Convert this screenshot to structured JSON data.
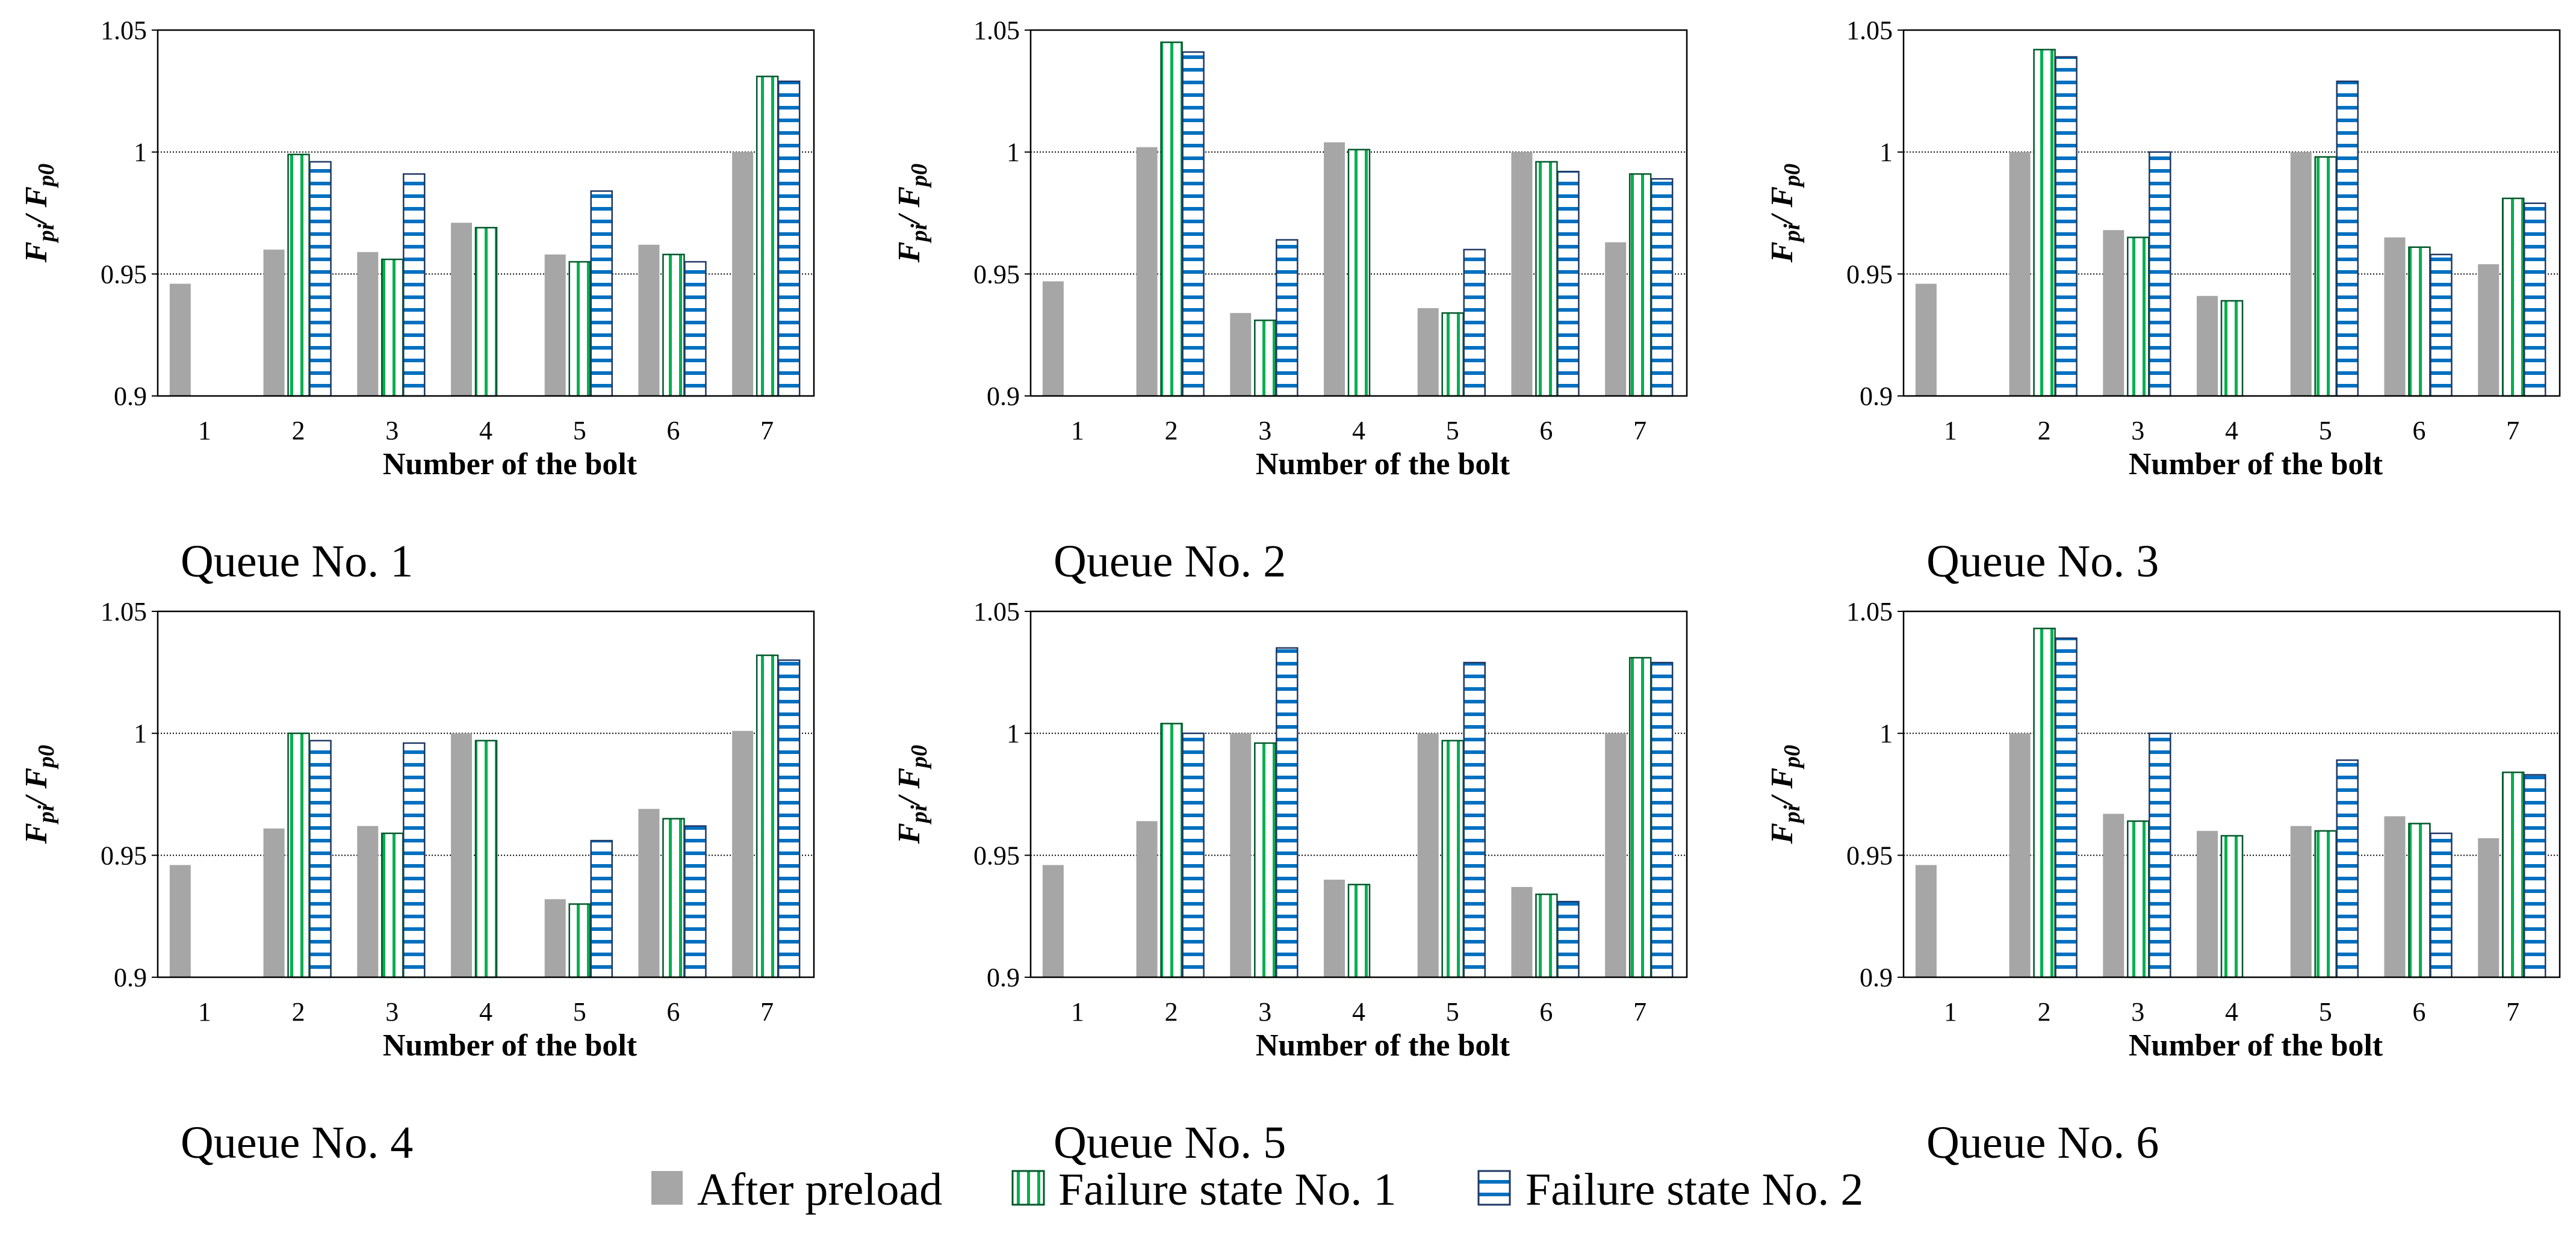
{
  "colors": {
    "after_preload": "#a6a6a6",
    "failure_1_stripe": "#00b050",
    "failure_1_edge": "#00572a",
    "failure_2_stripe": "#0070c0",
    "failure_2_edge": "#1f3864",
    "gridline": "#000000"
  },
  "chart_data": [
    {
      "type": "bar",
      "title": "Queue No. 1",
      "xlabel": "Number of the bolt",
      "ylabel": {
        "main": "F",
        "sub1": "pi",
        "sep": "/ F",
        "sub2": "p0"
      },
      "ylim": [
        0.9,
        1.05
      ],
      "yticks": [
        "0.9",
        "0.95",
        "1",
        "1.05"
      ],
      "ytick_values": [
        0.9,
        0.95,
        1.0,
        1.05
      ],
      "gridlines": [
        0.95,
        1.0
      ],
      "categories": [
        "1",
        "2",
        "3",
        "4",
        "5",
        "6",
        "7"
      ],
      "series": [
        {
          "name": "After preload",
          "values": [
            0.946,
            0.96,
            0.959,
            0.971,
            0.958,
            0.962,
            1.0
          ]
        },
        {
          "name": "Failure state No. 1",
          "values": [
            null,
            0.999,
            0.956,
            0.969,
            0.955,
            0.958,
            1.031
          ]
        },
        {
          "name": "Failure state No. 2",
          "values": [
            null,
            0.996,
            0.991,
            null,
            0.984,
            0.955,
            1.029
          ]
        }
      ]
    },
    {
      "type": "bar",
      "title": "Queue No. 2",
      "xlabel": "Number of the bolt",
      "ylabel": {
        "main": "F",
        "sub1": "pi",
        "sep": "/ F",
        "sub2": "p0"
      },
      "ylim": [
        0.9,
        1.05
      ],
      "yticks": [
        "0.9",
        "0.95",
        "1",
        "1.05"
      ],
      "ytick_values": [
        0.9,
        0.95,
        1.0,
        1.05
      ],
      "gridlines": [
        0.95,
        1.0
      ],
      "categories": [
        "1",
        "2",
        "3",
        "4",
        "5",
        "6",
        "7"
      ],
      "series": [
        {
          "name": "After preload",
          "values": [
            0.947,
            1.002,
            0.934,
            1.004,
            0.936,
            1.0,
            0.963
          ]
        },
        {
          "name": "Failure state No. 1",
          "values": [
            null,
            1.045,
            0.931,
            1.001,
            0.934,
            0.996,
            0.991
          ]
        },
        {
          "name": "Failure state No. 2",
          "values": [
            null,
            1.041,
            0.964,
            null,
            0.96,
            0.992,
            0.989
          ]
        }
      ]
    },
    {
      "type": "bar",
      "title": "Queue No. 3",
      "xlabel": "Number of the bolt",
      "ylabel": {
        "main": "F",
        "sub1": "pi",
        "sep": "/ F",
        "sub2": "p0"
      },
      "ylim": [
        0.9,
        1.05
      ],
      "yticks": [
        "0.9",
        "0.95",
        "1",
        "1.05"
      ],
      "ytick_values": [
        0.9,
        0.95,
        1.0,
        1.05
      ],
      "gridlines": [
        0.95,
        1.0
      ],
      "categories": [
        "1",
        "2",
        "3",
        "4",
        "5",
        "6",
        "7"
      ],
      "series": [
        {
          "name": "After preload",
          "values": [
            0.946,
            1.0,
            0.968,
            0.941,
            1.0,
            0.965,
            0.954
          ]
        },
        {
          "name": "Failure state No. 1",
          "values": [
            null,
            1.042,
            0.965,
            0.939,
            0.998,
            0.961,
            0.981
          ]
        },
        {
          "name": "Failure state No. 2",
          "values": [
            null,
            1.039,
            1.0,
            null,
            1.029,
            0.958,
            0.979
          ]
        }
      ]
    },
    {
      "type": "bar",
      "title": "Queue No. 4",
      "xlabel": "Number of the bolt",
      "ylabel": {
        "main": "F",
        "sub1": "pi",
        "sep": "/ F",
        "sub2": "p0"
      },
      "ylim": [
        0.9,
        1.05
      ],
      "yticks": [
        "0.9",
        "0.95",
        "1",
        "1.05"
      ],
      "ytick_values": [
        0.9,
        0.95,
        1.0,
        1.05
      ],
      "gridlines": [
        0.95,
        1.0
      ],
      "categories": [
        "1",
        "2",
        "3",
        "4",
        "5",
        "6",
        "7"
      ],
      "series": [
        {
          "name": "After preload",
          "values": [
            0.946,
            0.961,
            0.962,
            1.0,
            0.932,
            0.969,
            1.001
          ]
        },
        {
          "name": "Failure state No. 1",
          "values": [
            null,
            1.0,
            0.959,
            0.997,
            0.93,
            0.965,
            1.032
          ]
        },
        {
          "name": "Failure state No. 2",
          "values": [
            null,
            0.997,
            0.996,
            null,
            0.956,
            0.962,
            1.03
          ]
        }
      ]
    },
    {
      "type": "bar",
      "title": "Queue No. 5",
      "xlabel": "Number of the bolt",
      "ylabel": {
        "main": "F",
        "sub1": "pi",
        "sep": "/ F",
        "sub2": "p0"
      },
      "ylim": [
        0.9,
        1.05
      ],
      "yticks": [
        "0.9",
        "0.95",
        "1",
        "1.05"
      ],
      "ytick_values": [
        0.9,
        0.95,
        1.0,
        1.05
      ],
      "gridlines": [
        0.95,
        1.0
      ],
      "categories": [
        "1",
        "2",
        "3",
        "4",
        "5",
        "6",
        "7"
      ],
      "series": [
        {
          "name": "After preload",
          "values": [
            0.946,
            0.964,
            1.0,
            0.94,
            1.0,
            0.937,
            1.0
          ]
        },
        {
          "name": "Failure state No. 1",
          "values": [
            null,
            1.004,
            0.996,
            0.938,
            0.997,
            0.934,
            1.031
          ]
        },
        {
          "name": "Failure state No. 2",
          "values": [
            null,
            1.0,
            1.035,
            null,
            1.029,
            0.931,
            1.029
          ]
        }
      ]
    },
    {
      "type": "bar",
      "title": "Queue No. 6",
      "xlabel": "Number of the bolt",
      "ylabel": {
        "main": "F",
        "sub1": "pi",
        "sep": "/ F",
        "sub2": "p0"
      },
      "ylim": [
        0.9,
        1.05
      ],
      "yticks": [
        "0.9",
        "0.95",
        "1",
        "1.05"
      ],
      "ytick_values": [
        0.9,
        0.95,
        1.0,
        1.05
      ],
      "gridlines": [
        0.95,
        1.0
      ],
      "categories": [
        "1",
        "2",
        "3",
        "4",
        "5",
        "6",
        "7"
      ],
      "series": [
        {
          "name": "After preload",
          "values": [
            0.946,
            1.0,
            0.967,
            0.96,
            0.962,
            0.966,
            0.957
          ]
        },
        {
          "name": "Failure state No. 1",
          "values": [
            null,
            1.043,
            0.964,
            0.958,
            0.96,
            0.963,
            0.984
          ]
        },
        {
          "name": "Failure state No. 2",
          "values": [
            null,
            1.039,
            1.0,
            null,
            0.989,
            0.959,
            0.983
          ]
        }
      ]
    }
  ],
  "legend": {
    "items": [
      {
        "label": "After preload",
        "swatch": "gray"
      },
      {
        "label": "Failure state No. 1",
        "swatch": "green-vertical-stripes"
      },
      {
        "label": "Failure state No. 2",
        "swatch": "blue-horizontal-stripes"
      }
    ]
  }
}
